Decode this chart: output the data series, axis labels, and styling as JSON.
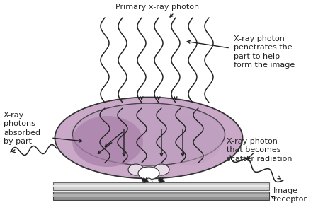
{
  "bg_color": "#ffffff",
  "body_fill": "#c9a8c8",
  "body_fill2": "#b898b8",
  "inner_fill": "#c0a0c0",
  "body_edge": "#333333",
  "vert_fill": "#e8dce8",
  "receptor_top_fill": "#c8c8c8",
  "receptor_bot_fill": "#888888",
  "text_color": "#222222",
  "wave_color": "#222222",
  "labels": {
    "primary": "Primary x-ray photon",
    "penetrates": "X-ray photon\npenetrates the\npart to help\nform the image",
    "absorbed": "X-ray\nphotons\nabsorbed\nby part",
    "scatter": "X-ray photon\nthat becomes\nscatter radiation",
    "receptor": "Image\nreceptor"
  },
  "figsize": [
    4.49,
    3.14
  ],
  "dpi": 100
}
